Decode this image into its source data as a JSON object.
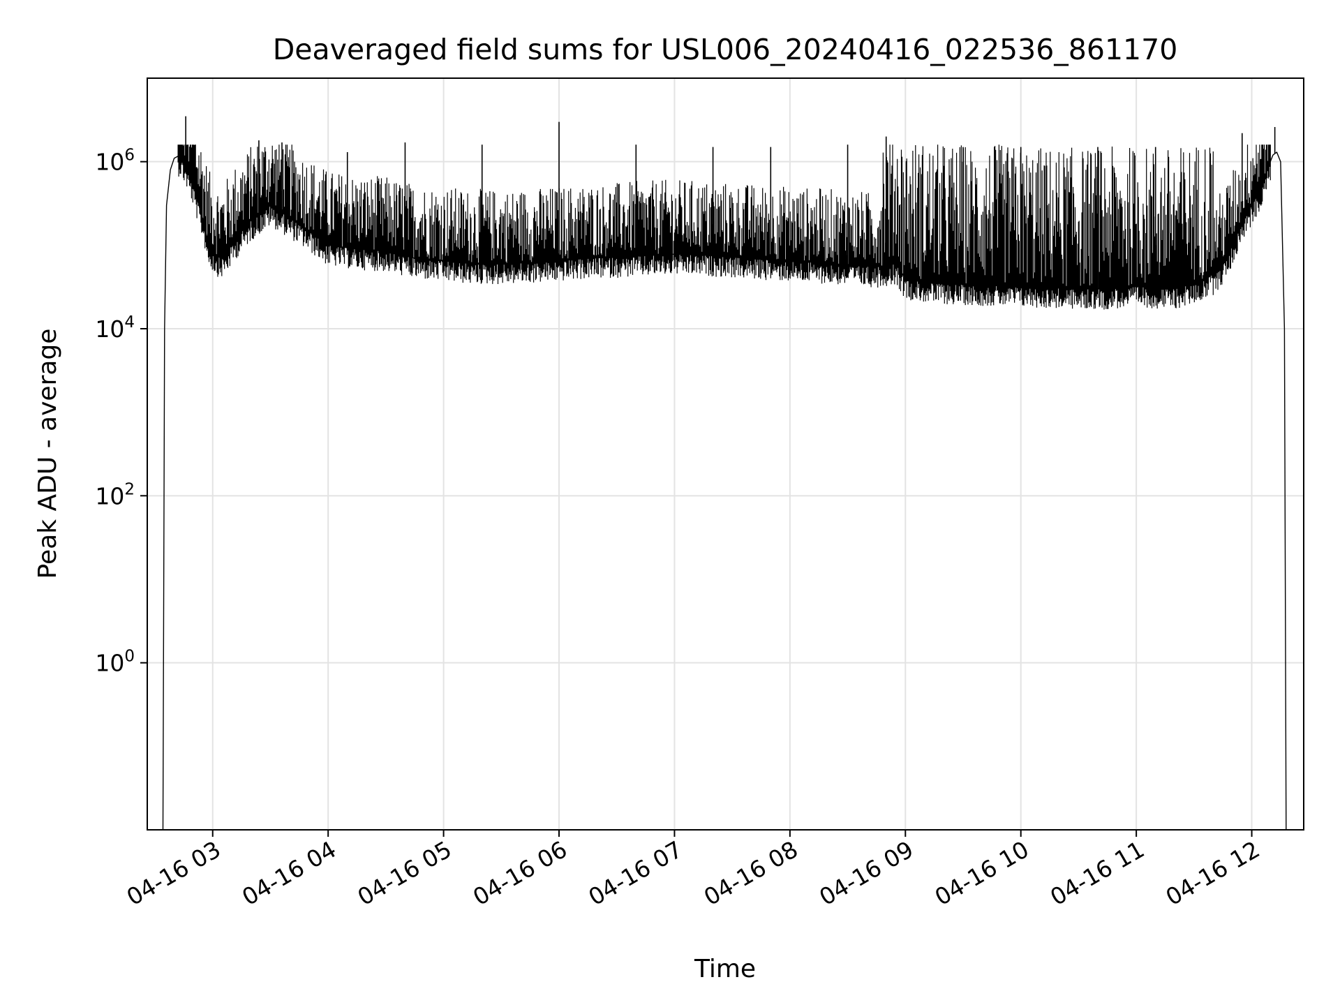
{
  "chart_data": {
    "type": "line",
    "title": "Deaveraged field sums for USL006_20240416_022536_861170",
    "xlabel": "Time",
    "ylabel": "Peak ADU - average",
    "yscale": "log",
    "ylim": [
      0.01,
      10000000
    ],
    "xlim": [
      "2024-04-16 02:26",
      "2024-04-16 12:27"
    ],
    "grid": true,
    "line_color": "#000000",
    "y_ticks": [
      {
        "value": 1,
        "base": "10",
        "exp": "0"
      },
      {
        "value": 100,
        "base": "10",
        "exp": "2"
      },
      {
        "value": 10000,
        "base": "10",
        "exp": "4"
      },
      {
        "value": 1000000,
        "base": "10",
        "exp": "6"
      }
    ],
    "x_ticks": [
      {
        "value": "2024-04-16 03:00",
        "label": "04-16 03"
      },
      {
        "value": "2024-04-16 04:00",
        "label": "04-16 04"
      },
      {
        "value": "2024-04-16 05:00",
        "label": "04-16 05"
      },
      {
        "value": "2024-04-16 06:00",
        "label": "04-16 06"
      },
      {
        "value": "2024-04-16 07:00",
        "label": "04-16 07"
      },
      {
        "value": "2024-04-16 08:00",
        "label": "04-16 08"
      },
      {
        "value": "2024-04-16 09:00",
        "label": "04-16 09"
      },
      {
        "value": "2024-04-16 10:00",
        "label": "04-16 10"
      },
      {
        "value": "2024-04-16 11:00",
        "label": "04-16 11"
      },
      {
        "value": "2024-04-16 12:00",
        "label": "04-16 12"
      }
    ],
    "series": [
      {
        "x": [
          "2024-04-16 02:34",
          "2024-04-16 02:35",
          "2024-04-16 02:36",
          "2024-04-16 02:38",
          "2024-04-16 02:40",
          "2024-04-16 02:43",
          "2024-04-16 02:46",
          "2024-04-16 02:49",
          "2024-04-16 02:52",
          "2024-04-16 02:55",
          "2024-04-16 02:58",
          "2024-04-16 03:01",
          "2024-04-16 03:04",
          "2024-04-16 03:07",
          "2024-04-16 03:12",
          "2024-04-16 03:20",
          "2024-04-16 03:30",
          "2024-04-16 03:45",
          "2024-04-16 04:00",
          "2024-04-16 04:15",
          "2024-04-16 04:30",
          "2024-04-16 04:45",
          "2024-04-16 05:00",
          "2024-04-16 05:15",
          "2024-04-16 05:30",
          "2024-04-16 05:45",
          "2024-04-16 06:00",
          "2024-04-16 06:15",
          "2024-04-16 06:30",
          "2024-04-16 06:45",
          "2024-04-16 07:00",
          "2024-04-16 07:15",
          "2024-04-16 07:30",
          "2024-04-16 07:45",
          "2024-04-16 08:00",
          "2024-04-16 08:15",
          "2024-04-16 08:30",
          "2024-04-16 08:45",
          "2024-04-16 08:55",
          "2024-04-16 09:00",
          "2024-04-16 09:15",
          "2024-04-16 09:30",
          "2024-04-16 09:45",
          "2024-04-16 10:00",
          "2024-04-16 10:15",
          "2024-04-16 10:30",
          "2024-04-16 10:45",
          "2024-04-16 11:00",
          "2024-04-16 11:10",
          "2024-04-16 11:20",
          "2024-04-16 11:30",
          "2024-04-16 11:40",
          "2024-04-16 11:45",
          "2024-04-16 11:50",
          "2024-04-16 11:55",
          "2024-04-16 12:00",
          "2024-04-16 12:05",
          "2024-04-16 12:08",
          "2024-04-16 12:11",
          "2024-04-16 12:13",
          "2024-04-16 12:15",
          "2024-04-16 12:17",
          "2024-04-16 12:18"
        ],
        "y": [
          0.001,
          10000,
          300000,
          800000,
          1100000,
          1200000,
          900000,
          600000,
          350000,
          200000,
          100000,
          80000,
          70000,
          80000,
          120000,
          200000,
          300000,
          180000,
          100000,
          90000,
          85000,
          70000,
          65000,
          60000,
          60000,
          62000,
          65000,
          70000,
          72000,
          75000,
          78000,
          76000,
          72000,
          68000,
          65000,
          62000,
          58000,
          55000,
          60000,
          40000,
          35000,
          34000,
          33000,
          32000,
          31000,
          30000,
          30000,
          32000,
          31000,
          30000,
          35000,
          45000,
          60000,
          100000,
          200000,
          300000,
          500000,
          800000,
          1200000,
          1300000,
          1000000,
          10000,
          0.001
        ],
        "spikes": [
          {
            "x": "2024-04-16 02:46",
            "y": 3500000
          },
          {
            "x": "2024-04-16 03:24",
            "y": 1800000
          },
          {
            "x": "2024-04-16 03:36",
            "y": 1700000
          },
          {
            "x": "2024-04-16 04:10",
            "y": 1300000
          },
          {
            "x": "2024-04-16 04:40",
            "y": 1700000
          },
          {
            "x": "2024-04-16 05:20",
            "y": 1600000
          },
          {
            "x": "2024-04-16 06:00",
            "y": 3000000
          },
          {
            "x": "2024-04-16 06:40",
            "y": 1600000
          },
          {
            "x": "2024-04-16 07:20",
            "y": 1500000
          },
          {
            "x": "2024-04-16 07:50",
            "y": 1500000
          },
          {
            "x": "2024-04-16 08:30",
            "y": 1600000
          },
          {
            "x": "2024-04-16 08:50",
            "y": 2000000
          },
          {
            "x": "2024-04-16 09:30",
            "y": 1500000
          },
          {
            "x": "2024-04-16 10:00",
            "y": 1500000
          },
          {
            "x": "2024-04-16 10:40",
            "y": 1500000
          },
          {
            "x": "2024-04-16 11:10",
            "y": 1500000
          },
          {
            "x": "2024-04-16 11:55",
            "y": 2200000
          },
          {
            "x": "2024-04-16 12:12",
            "y": 2600000
          }
        ]
      }
    ]
  }
}
